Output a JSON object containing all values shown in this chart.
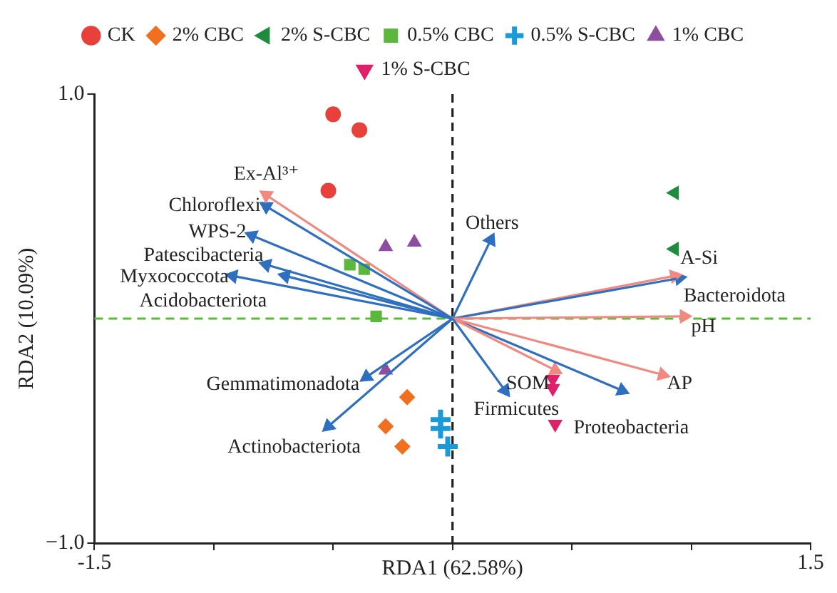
{
  "chart_data": {
    "type": "scatter",
    "xlabel": "RDA1 (62.58%)",
    "ylabel": "RDA2 (10.09%)",
    "xlim": [
      -1.5,
      1.5
    ],
    "ylim": [
      -1,
      1
    ],
    "xticks": [
      -1.5,
      {
        "value": -1,
        "label": null
      },
      {
        "value": -0.5,
        "label": null
      },
      {
        "value": 0,
        "label": null
      },
      {
        "value": 0.5,
        "label": null
      },
      {
        "value": 1,
        "label": null
      },
      1.5
    ],
    "yticks": [
      {
        "value": -1,
        "label": "−1.0"
      },
      {
        "value": 1,
        "label": "1.0"
      }
    ],
    "grid": false,
    "legend": "top",
    "ref_lines": [
      {
        "axis": "x",
        "value": 0,
        "color": "#222222",
        "line_style": "dashed"
      },
      {
        "axis": "y",
        "value": 0,
        "color": "#5cb83c",
        "line_style": "dashed"
      }
    ],
    "series": [
      {
        "name": "CK",
        "marker": "circle",
        "color": "#e8403a",
        "x": [
          -0.5,
          -0.39,
          -0.52
        ],
        "values": [
          0.91,
          0.84,
          0.57
        ]
      },
      {
        "name": "2% CBC",
        "marker": "diamond",
        "color": "#f07020",
        "x": [
          -0.19,
          -0.28,
          -0.21
        ],
        "values": [
          -0.35,
          -0.48,
          -0.57
        ]
      },
      {
        "name": "2% S-CBC",
        "marker": "triangle",
        "color": "#1e8c3c",
        "x": [
          0.93,
          0.93
        ],
        "values": [
          0.56,
          0.31
        ]
      },
      {
        "name": "0.5% CBC",
        "marker": "square",
        "color": "#5cb83c",
        "x": [
          -0.43,
          -0.37,
          -0.32
        ],
        "values": [
          0.24,
          0.22,
          0.01
        ]
      },
      {
        "name": "0.5% S-CBC",
        "marker": "cross",
        "color": "#1a9ad6",
        "x": [
          -0.05,
          -0.05,
          -0.02
        ],
        "values": [
          -0.45,
          -0.49,
          -0.57
        ]
      },
      {
        "name": "1% CBC",
        "marker": "triangle",
        "color": "#8e4ea0",
        "x": [
          -0.28,
          -0.16,
          -0.28
        ],
        "values": [
          0.32,
          0.34,
          -0.23
        ]
      },
      {
        "name": "1% S-CBC",
        "marker": "triangle",
        "color": "#e0206a",
        "x": [
          0.42,
          0.42,
          0.43
        ],
        "values": [
          -0.27,
          -0.31,
          -0.47
        ]
      },
      {
        "marker": "triangle",
        "color": "#f08a80",
        "x": [
          -0.78,
          0.93,
          0.97,
          0.43,
          0.88
        ],
        "values": [
          0.55,
          0.19,
          0.01,
          -0.23,
          -0.25
        ]
      },
      {
        "marker": "triangle",
        "color": "#2e6fc0",
        "x": [
          -0.78,
          -0.84,
          -0.78,
          -0.92,
          -0.7,
          0.16,
          0.95,
          0.71,
          0.22,
          -0.36,
          -0.52
        ],
        "values": [
          0.5,
          0.37,
          0.24,
          0.19,
          0.19,
          0.35,
          0.18,
          -0.32,
          -0.32,
          -0.26,
          -0.48
        ]
      }
    ],
    "annotations": [
      {
        "text": "Ex-Al³⁺",
        "x": -0.78,
        "y": 0.55
      },
      {
        "text": "Chloroflexi",
        "x": -0.78,
        "y": 0.5
      },
      {
        "text": "WPS-2",
        "x": -0.84,
        "y": 0.37
      },
      {
        "text": "Patescibacteria",
        "x": -0.78,
        "y": 0.24
      },
      {
        "text": "Myxococcota",
        "x": -0.92,
        "y": 0.19
      },
      {
        "text": "Acidobacteriota",
        "x": -0.7,
        "y": 0.19
      },
      {
        "text": "Others",
        "x": 0.16,
        "y": 0.35
      },
      {
        "text": "A-Si",
        "x": 0.93,
        "y": 0.19
      },
      {
        "text": "Bacteroidota",
        "x": 0.95,
        "y": 0.18
      },
      {
        "text": "pH",
        "x": 0.97,
        "y": 0.01
      },
      {
        "text": "Proteobacteria",
        "x": 0.71,
        "y": -0.32
      },
      {
        "text": "SOM",
        "x": 0.43,
        "y": -0.23
      },
      {
        "text": "AP",
        "x": 0.88,
        "y": -0.25
      },
      {
        "text": "Firmicutes",
        "x": 0.22,
        "y": -0.32
      },
      {
        "text": "Gemmatimonadota",
        "x": -0.36,
        "y": -0.26
      },
      {
        "text": "Actinobacteriota",
        "x": -0.52,
        "y": -0.48
      }
    ]
  }
}
